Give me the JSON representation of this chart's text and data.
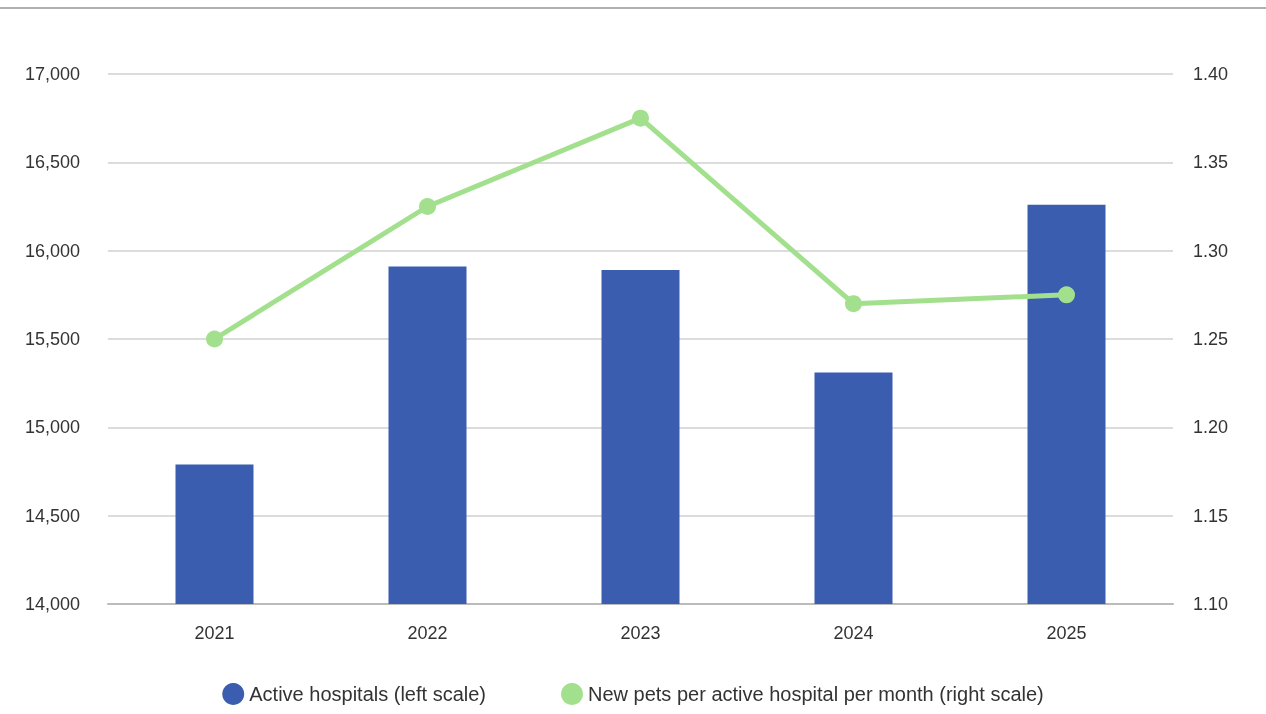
{
  "chart_data": {
    "type": "bar",
    "categories": [
      "2021",
      "2022",
      "2023",
      "2024",
      "2025"
    ],
    "series": [
      {
        "name": "Active hospitals (left scale)",
        "color": "#3a5daf",
        "values": [
          14790,
          15910,
          15890,
          15310,
          16260
        ]
      },
      {
        "name": "New pets per active hospital per month (right scale)",
        "color": "#a3e08e",
        "type": "line",
        "axis": "y2",
        "values": [
          1.25,
          1.325,
          1.375,
          1.27,
          1.275
        ]
      }
    ],
    "ylim": [
      14000,
      17000
    ],
    "yticks": [
      {
        "value": 14000,
        "label": "14,000"
      },
      {
        "value": 14500,
        "label": "14,500"
      },
      {
        "value": 15000,
        "label": "15,000"
      },
      {
        "value": 15500,
        "label": "15,500"
      },
      {
        "value": 16000,
        "label": "16,000"
      },
      {
        "value": 16500,
        "label": "16,500"
      },
      {
        "value": 17000,
        "label": "17,000"
      }
    ],
    "y2lim": [
      1.1,
      1.4
    ],
    "y2ticks": [
      {
        "value": 1.1,
        "label": "1.10"
      },
      {
        "value": 1.15,
        "label": "1.15"
      },
      {
        "value": 1.2,
        "label": "1.20"
      },
      {
        "value": 1.25,
        "label": "1.25"
      },
      {
        "value": 1.3,
        "label": "1.30"
      },
      {
        "value": 1.35,
        "label": "1.35"
      },
      {
        "value": 1.4,
        "label": "1.40"
      }
    ],
    "grid": "y",
    "legend": "bottom",
    "marker": "circle"
  }
}
